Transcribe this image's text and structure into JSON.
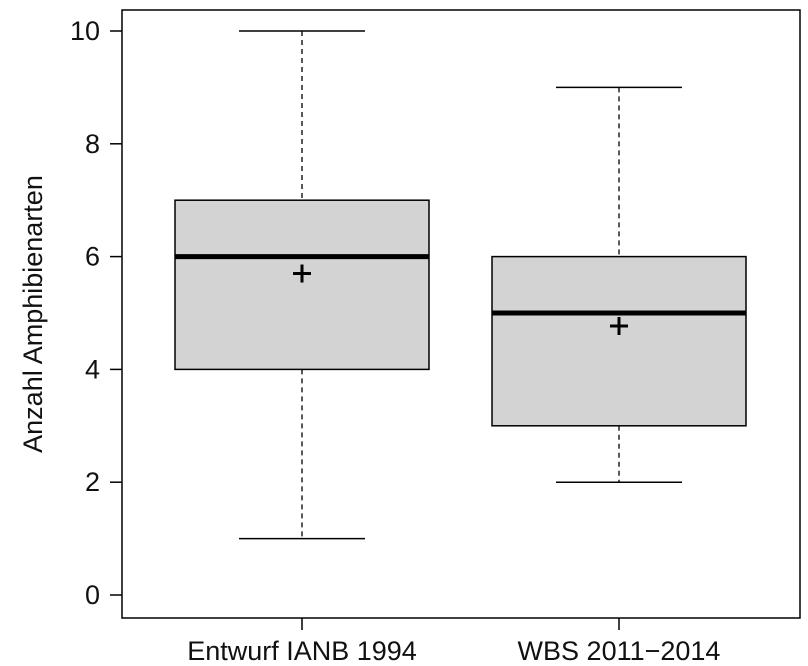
{
  "chart_data": {
    "type": "boxplot",
    "title": "",
    "xlabel": "",
    "ylabel": "Anzahl Amphibienarten",
    "ylim": [
      0,
      10
    ],
    "yticks": [
      0,
      2,
      4,
      6,
      8,
      10
    ],
    "grid": false,
    "legend": "none",
    "categories": [
      "Entwurf IANB 1994",
      "WBS 2011−2014"
    ],
    "boxes": [
      {
        "category": "Entwurf IANB 1994",
        "min": 1,
        "q1": 4,
        "median": 6,
        "q3": 7,
        "max": 10,
        "mean": 5.7
      },
      {
        "category": "WBS 2011−2014",
        "min": 2,
        "q1": 3,
        "median": 5,
        "q3": 6,
        "max": 9,
        "mean": 4.77
      }
    ],
    "box_fill": "#d3d3d3",
    "line_color": "#000000"
  }
}
